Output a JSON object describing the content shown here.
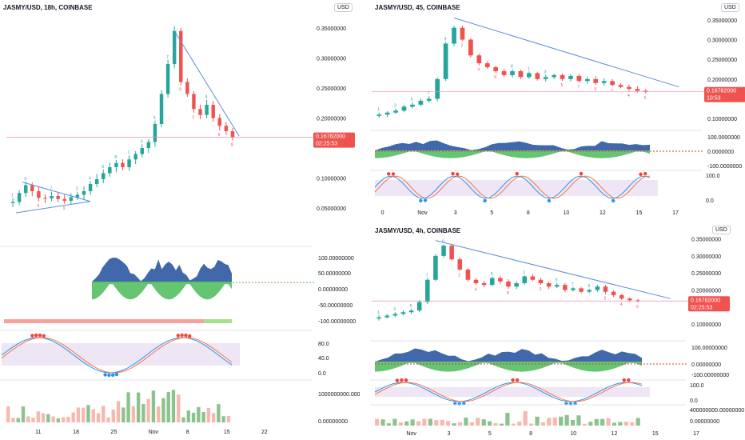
{
  "colors": {
    "up": "#26a69a",
    "down": "#ef5350",
    "trend": "#5b8fd6",
    "price_badge": "#ef5350",
    "usd_badge_bg": "#ffffff",
    "band": "#e7dcef",
    "grid_text": "#131722",
    "macd_fill": "#1f4e9c",
    "macd_fill_light": "#9db8ea",
    "green_fill": "#3fb64d",
    "volume_green": "#3e9a41",
    "volume_red": "#f4877d",
    "dot_red": "#f44336",
    "dot_blue": "#2196f3",
    "dotted_red": "#e53935",
    "dotted_green": "#4caf50"
  },
  "chart_data": [
    {
      "type": "line",
      "title": "JASMY/USD, 18h, COINBASE",
      "currency_badge": "USD",
      "price_badge": {
        "value": "0.16782000",
        "countdown": "02:25:53"
      },
      "yticks": [
        "0.35000000",
        "0.30000000",
        "0.25000000",
        "0.20000000",
        "0.10000000",
        "0.05000000"
      ],
      "xticks": [
        "11",
        "18",
        "25",
        "Nov",
        "8",
        "15",
        "22"
      ],
      "ylim": [
        0.01,
        0.37
      ],
      "series": [
        {
          "values": [
            0.06,
            0.075,
            0.088,
            0.078,
            0.067,
            0.066,
            0.07,
            0.065,
            0.062,
            0.068,
            0.072,
            0.078,
            0.09,
            0.098,
            0.108,
            0.118,
            0.125,
            0.118,
            0.131,
            0.14,
            0.15,
            0.16,
            0.19,
            0.24,
            0.29,
            0.345,
            0.26,
            0.24,
            0.215,
            0.205,
            0.222,
            0.2,
            0.187,
            0.178,
            0.168
          ]
        }
      ],
      "trendlines": [
        {
          "from": [
            0.5,
            0.042
          ],
          "to": [
            12,
            0.061
          ]
        },
        {
          "from": [
            1.5,
            0.093
          ],
          "to": [
            12,
            0.061
          ]
        },
        {
          "from": [
            25,
            0.345
          ],
          "to": [
            35,
            0.17
          ]
        }
      ],
      "panes": [
        {
          "name": "macd",
          "yticks": [
            "100.00000000",
            "50.00000000",
            "0.00000000",
            "-50.00000000",
            "-100.00000000"
          ]
        },
        {
          "name": "stoch",
          "yticks": [
            "80.0",
            "40.0",
            "0.0"
          ]
        },
        {
          "name": "volume",
          "yticks": [
            "1000000000.00000000",
            "0.00000000"
          ]
        }
      ]
    },
    {
      "type": "line",
      "title": "JASMY/USD, 45, COINBASE",
      "currency_badge": "USD",
      "price_badge": {
        "value": "0.16782000",
        "countdown": "10:53"
      },
      "yticks": [
        "0.35000000",
        "0.30000000",
        "0.25000000",
        "0.20000000",
        "0.10000000"
      ],
      "xticks": [
        "0",
        "Nov",
        "3",
        "5",
        "8",
        "10",
        "12",
        "15",
        "17"
      ],
      "ylim": [
        0.08,
        0.37
      ],
      "series": [
        {
          "values": [
            0.11,
            0.115,
            0.12,
            0.13,
            0.135,
            0.145,
            0.15,
            0.2,
            0.29,
            0.33,
            0.3,
            0.26,
            0.24,
            0.23,
            0.22,
            0.21,
            0.22,
            0.205,
            0.215,
            0.2,
            0.205,
            0.21,
            0.2,
            0.208,
            0.195,
            0.2,
            0.19,
            0.195,
            0.185,
            0.18,
            0.175,
            0.17,
            0.168
          ]
        }
      ],
      "trendlines": [
        {
          "from": [
            9,
            0.355
          ],
          "to": [
            36,
            0.18
          ]
        }
      ],
      "panes": [
        {
          "name": "macd",
          "yticks": [
            "100.0000000",
            "0.0000000",
            "-100.0000000"
          ]
        },
        {
          "name": "stoch",
          "yticks": [
            "100.0",
            "0.0"
          ]
        }
      ]
    },
    {
      "type": "line",
      "title": "JASMY/USD, 4h, COINBASE",
      "currency_badge": "USD",
      "price_badge": {
        "value": "0.16782000",
        "countdown": "02:25:53"
      },
      "yticks": [
        "0.35000000",
        "0.30000000",
        "0.25000000",
        "0.20000000",
        "0.10000000"
      ],
      "xticks": [
        "Nov",
        "3",
        "5",
        "8",
        "10",
        "12",
        "15",
        "17"
      ],
      "ylim": [
        0.07,
        0.37
      ],
      "series": [
        {
          "values": [
            0.12,
            0.125,
            0.13,
            0.135,
            0.14,
            0.165,
            0.23,
            0.3,
            0.33,
            0.29,
            0.26,
            0.23,
            0.22,
            0.215,
            0.235,
            0.225,
            0.21,
            0.22,
            0.24,
            0.23,
            0.22,
            0.21,
            0.215,
            0.2,
            0.205,
            0.195,
            0.2,
            0.21,
            0.195,
            0.185,
            0.175,
            0.17,
            0.168
          ]
        }
      ],
      "trendlines": [
        {
          "from": [
            7,
            0.345
          ],
          "to": [
            36,
            0.175
          ]
        }
      ],
      "panes": [
        {
          "name": "macd",
          "yticks": [
            "100.00000000",
            "0.00000000",
            "-100.00000000"
          ]
        },
        {
          "name": "stoch",
          "yticks": [
            "100.0",
            "0.0"
          ]
        },
        {
          "name": "volume",
          "yticks": [
            "400000000.00000000",
            "0.00000000"
          ]
        }
      ]
    }
  ]
}
